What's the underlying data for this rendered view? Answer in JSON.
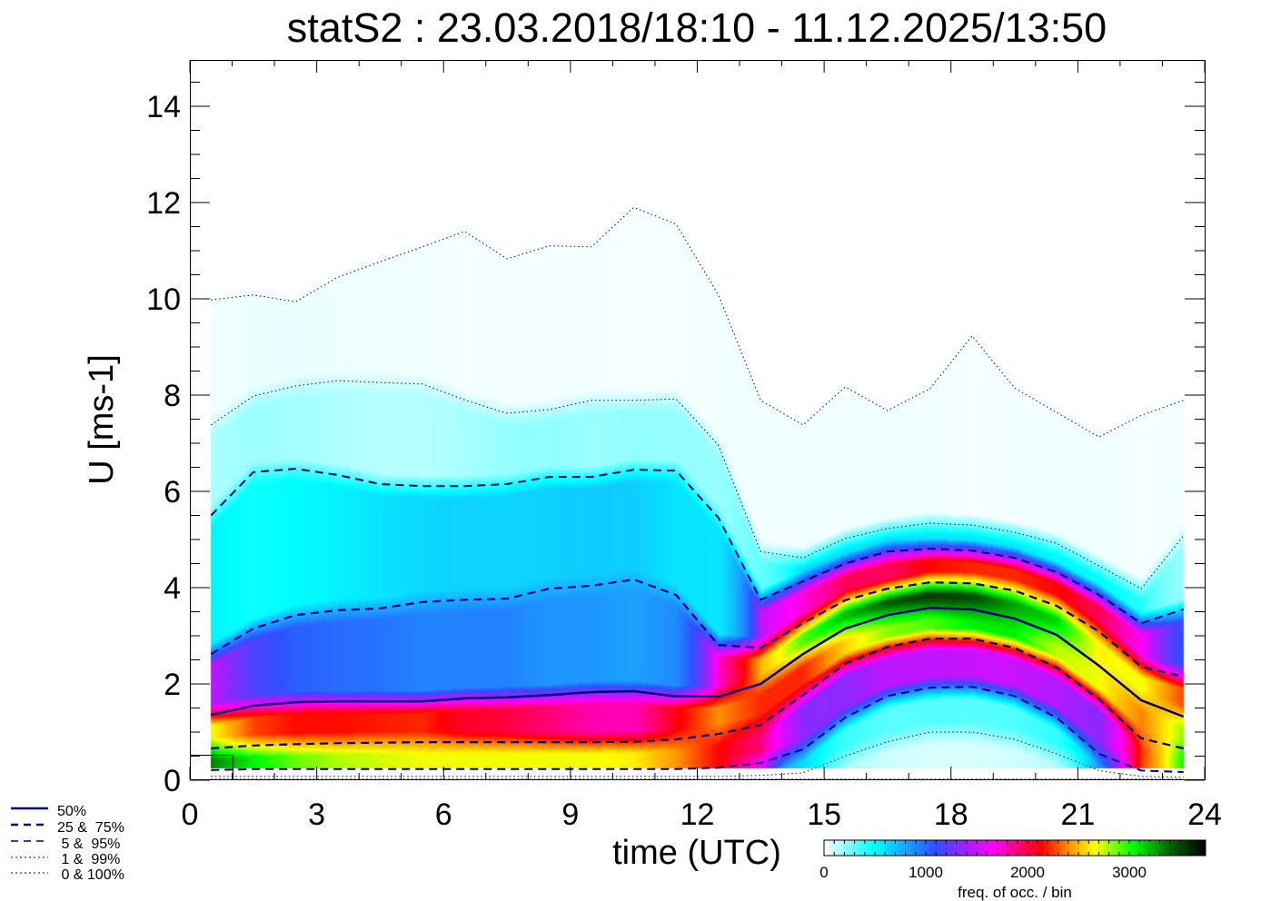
{
  "chart_data": {
    "type": "heatmap",
    "title": "statS2 : 23.03.2018/18:10 - 11.12.2025/13:50",
    "xlabel": "time (UTC)",
    "ylabel": "U [ms-1]",
    "xlim": [
      0,
      24
    ],
    "ylim": [
      0,
      15
    ],
    "xticks": [
      "0",
      "3",
      "6",
      "9",
      "12",
      "15",
      "18",
      "21",
      "24"
    ],
    "yticks": [
      "0",
      "2",
      "4",
      "6",
      "8",
      "10",
      "12",
      "14"
    ],
    "x": [
      0.5,
      1.5,
      2.5,
      3.5,
      4.5,
      5.5,
      6.5,
      7.5,
      8.5,
      9.5,
      10.5,
      11.5,
      12.5,
      13.5,
      14.5,
      15.5,
      16.5,
      17.5,
      18.5,
      19.5,
      20.5,
      21.5,
      22.5,
      23.5
    ],
    "series": [
      {
        "name": "0%",
        "style": "dotted",
        "values": [
          0.02,
          0.02,
          0.02,
          0.02,
          0.02,
          0.02,
          0.02,
          0.02,
          0.02,
          0.02,
          0.02,
          0.02,
          0.02,
          0.02,
          0.02,
          0.02,
          0.02,
          0.02,
          0.02,
          0.02,
          0.02,
          0.02,
          0.02,
          0.02
        ]
      },
      {
        "name": "1%",
        "style": "dotted",
        "values": [
          0.08,
          0.08,
          0.08,
          0.08,
          0.08,
          0.08,
          0.08,
          0.08,
          0.08,
          0.08,
          0.08,
          0.08,
          0.08,
          0.1,
          0.15,
          0.5,
          0.8,
          1.0,
          1.0,
          0.85,
          0.55,
          0.2,
          0.08,
          0.06
        ]
      },
      {
        "name": "5%",
        "style": "dashed",
        "values": [
          0.21,
          0.23,
          0.23,
          0.23,
          0.23,
          0.23,
          0.23,
          0.23,
          0.23,
          0.23,
          0.23,
          0.23,
          0.26,
          0.36,
          0.64,
          1.3,
          1.75,
          1.92,
          1.94,
          1.75,
          1.3,
          0.55,
          0.2,
          0.17
        ]
      },
      {
        "name": "25%",
        "style": "dashed",
        "values": [
          0.66,
          0.72,
          0.75,
          0.77,
          0.78,
          0.79,
          0.79,
          0.79,
          0.79,
          0.79,
          0.8,
          0.85,
          0.96,
          1.15,
          1.77,
          2.42,
          2.77,
          2.94,
          2.94,
          2.75,
          2.34,
          1.68,
          0.87,
          0.66
        ]
      },
      {
        "name": "50%",
        "style": "solid",
        "values": [
          1.36,
          1.55,
          1.62,
          1.64,
          1.64,
          1.64,
          1.7,
          1.72,
          1.77,
          1.83,
          1.85,
          1.74,
          1.74,
          2.0,
          2.62,
          3.15,
          3.43,
          3.58,
          3.55,
          3.36,
          3.02,
          2.38,
          1.66,
          1.32
        ]
      },
      {
        "name": "75%",
        "style": "dashed",
        "values": [
          2.62,
          3.15,
          3.43,
          3.53,
          3.57,
          3.7,
          3.75,
          3.77,
          3.98,
          4.04,
          4.17,
          3.85,
          2.81,
          2.75,
          3.26,
          3.74,
          3.98,
          4.11,
          4.09,
          3.94,
          3.62,
          3.09,
          2.36,
          2.15
        ]
      },
      {
        "name": "95%",
        "style": "dashed",
        "values": [
          5.5,
          6.4,
          6.47,
          6.34,
          6.15,
          6.11,
          6.11,
          6.15,
          6.3,
          6.3,
          6.45,
          6.43,
          5.45,
          3.75,
          4.13,
          4.5,
          4.75,
          4.81,
          4.77,
          4.62,
          4.32,
          3.85,
          3.26,
          3.55
        ]
      },
      {
        "name": "99%",
        "style": "dotted",
        "values": [
          7.38,
          7.98,
          8.19,
          8.3,
          8.26,
          8.23,
          7.9,
          7.62,
          7.7,
          7.89,
          7.89,
          7.92,
          6.96,
          4.75,
          4.62,
          5.02,
          5.23,
          5.34,
          5.3,
          5.15,
          4.92,
          4.45,
          3.98,
          5.08
        ]
      },
      {
        "name": "100%",
        "style": "dotted",
        "values": [
          9.98,
          10.08,
          9.94,
          10.45,
          10.77,
          11.08,
          11.4,
          10.83,
          11.1,
          11.08,
          11.9,
          11.55,
          10.08,
          7.89,
          7.38,
          8.17,
          7.68,
          8.13,
          9.23,
          8.15,
          7.64,
          7.13,
          7.58,
          7.89
        ]
      }
    ],
    "legend": {
      "position": "bottom-left",
      "entries": [
        "50%",
        "25 &  75%",
        " 5 &  95%",
        " 1 &  99%",
        " 0 & 100%"
      ]
    },
    "colorbar": {
      "label": "freq. of occ. / bin",
      "range": [
        0,
        3750
      ],
      "ticks": [
        "0",
        "1000",
        "2000",
        "3000"
      ],
      "colormap": [
        "#ffffff",
        "#00ffff",
        "#3050ff",
        "#a020ff",
        "#ff00ff",
        "#ff0000",
        "#ff9000",
        "#ffff00",
        "#00ff00",
        "#006000",
        "#000000"
      ]
    },
    "line_color": "#000080"
  }
}
